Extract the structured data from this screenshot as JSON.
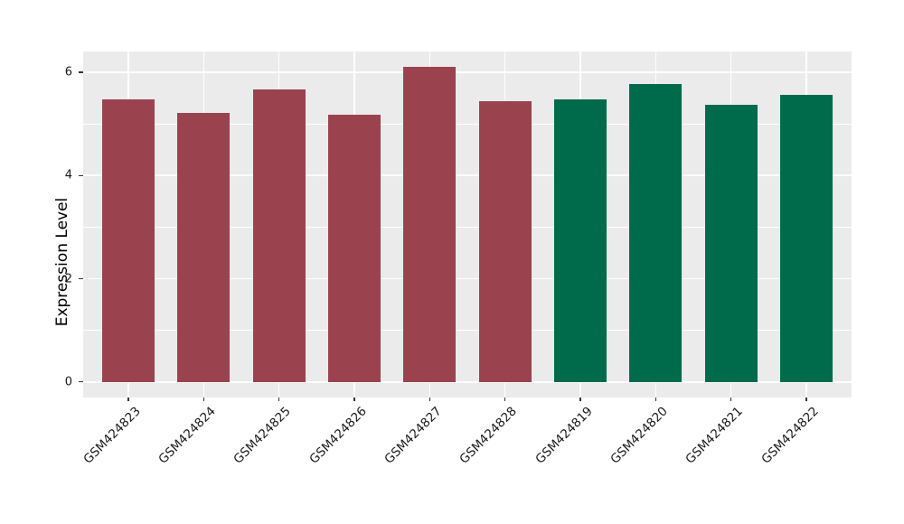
{
  "chart_data": {
    "type": "bar",
    "categories": [
      "GSM424823",
      "GSM424824",
      "GSM424825",
      "GSM424826",
      "GSM424827",
      "GSM424828",
      "GSM424819",
      "GSM424820",
      "GSM424821",
      "GSM424822"
    ],
    "values": [
      5.47,
      5.21,
      5.66,
      5.17,
      6.11,
      5.43,
      5.48,
      5.77,
      5.37,
      5.56
    ],
    "bar_colors": [
      "#9A434F",
      "#9A434F",
      "#9A434F",
      "#9A434F",
      "#9A434F",
      "#9A434F",
      "#006B4A",
      "#006B4A",
      "#006B4A",
      "#006B4A"
    ],
    "groups": [
      {
        "name": "red-group",
        "color": "#9A434F",
        "categories": [
          "GSM424823",
          "GSM424824",
          "GSM424825",
          "GSM424826",
          "GSM424827",
          "GSM424828"
        ]
      },
      {
        "name": "green-group",
        "color": "#006B4A",
        "categories": [
          "GSM424819",
          "GSM424820",
          "GSM424821",
          "GSM424822"
        ]
      }
    ],
    "title": "",
    "xlabel": "",
    "ylabel": "Expression Level",
    "yticks_major": [
      0,
      2,
      4,
      6
    ],
    "yticks_minor": [
      1,
      3,
      5
    ],
    "ylim": [
      -0.3,
      6.4
    ],
    "bar_width_fraction": 0.7,
    "x_range_units": 10.2,
    "x_first_center_units": 0.6,
    "grid": true,
    "legend_position": "none",
    "panel_bg": "#EBEBEB",
    "grid_color": "#FFFFFF",
    "tick_color": "#333333",
    "text_color": "#1A1A1A"
  }
}
